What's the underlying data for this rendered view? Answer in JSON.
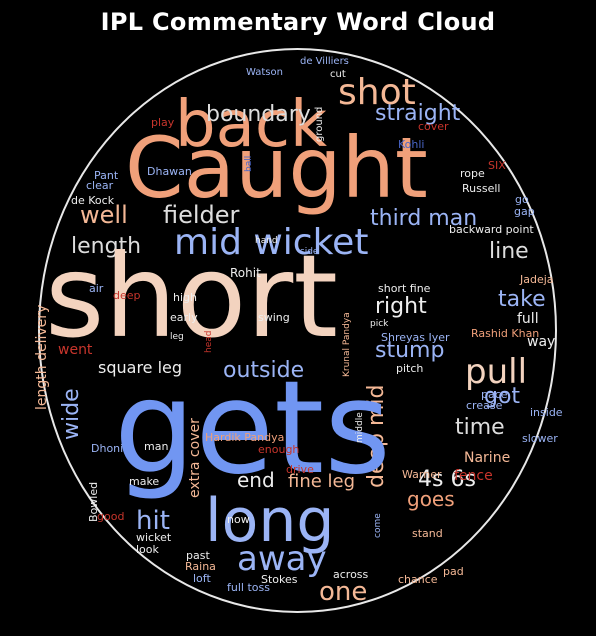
{
  "title": "IPL Commentary Word Cloud",
  "palette": {
    "peach": "#f4b896",
    "salmon": "#f0a07a",
    "cream": "#f3d3bf",
    "blue": "#7196f2",
    "lightblue": "#9bb4f5",
    "gray": "#dddddd",
    "white": "#eeeeee",
    "red": "#c8352c",
    "brown": "#c0503d",
    "navy": "#4a66c8"
  },
  "words": [
    {
      "text": "shot",
      "color": "peach"
    },
    {
      "text": "back",
      "color": "salmon"
    },
    {
      "text": "boundary",
      "color": "gray"
    },
    {
      "text": "Caught",
      "color": "salmon"
    },
    {
      "text": "de Villiers",
      "color": "lightblue"
    },
    {
      "text": "Watson",
      "color": "lightblue"
    },
    {
      "text": "cut",
      "color": "white"
    },
    {
      "text": "straight",
      "color": "lightblue"
    },
    {
      "text": "Kohli",
      "color": "navy"
    },
    {
      "text": "cover",
      "color": "red"
    },
    {
      "text": "play",
      "color": "red"
    },
    {
      "text": "ground",
      "color": "white"
    },
    {
      "text": "ball",
      "color": "navy"
    },
    {
      "text": "well",
      "color": "peach"
    },
    {
      "text": "fielder",
      "color": "gray"
    },
    {
      "text": "third man",
      "color": "lightblue"
    },
    {
      "text": "mid wicket",
      "color": "lightblue"
    },
    {
      "text": "length",
      "color": "gray"
    },
    {
      "text": "line",
      "color": "gray"
    },
    {
      "text": "short",
      "color": "cream"
    },
    {
      "text": "take",
      "color": "lightblue"
    },
    {
      "text": "right",
      "color": "white"
    },
    {
      "text": "outside",
      "color": "lightblue"
    },
    {
      "text": "stump",
      "color": "lightblue"
    },
    {
      "text": "pull",
      "color": "cream"
    },
    {
      "text": "deep mid",
      "color": "peach"
    },
    {
      "text": "got",
      "color": "lightblue"
    },
    {
      "text": "time",
      "color": "gray"
    },
    {
      "text": "gets",
      "color": "blue"
    },
    {
      "text": "long",
      "color": "lightblue"
    },
    {
      "text": "away",
      "color": "lightblue"
    },
    {
      "text": "one",
      "color": "peach"
    },
    {
      "text": "hit",
      "color": "lightblue"
    },
    {
      "text": "end",
      "color": "white"
    },
    {
      "text": "fine leg",
      "color": "peach"
    },
    {
      "text": "goes",
      "color": "salmon"
    },
    {
      "text": "4s 6s",
      "color": "white"
    },
    {
      "text": "wide",
      "color": "lightblue"
    },
    {
      "text": "square leg",
      "color": "white"
    },
    {
      "text": "length delivery",
      "color": "peach"
    },
    {
      "text": "went",
      "color": "red"
    },
    {
      "text": "extra cover",
      "color": "peach"
    },
    {
      "text": "Hardik Pandya",
      "color": "salmon"
    },
    {
      "text": "enough",
      "color": "red"
    },
    {
      "text": "drive",
      "color": "red"
    },
    {
      "text": "Narine",
      "color": "peach"
    },
    {
      "text": "fence",
      "color": "red"
    },
    {
      "text": "Warner",
      "color": "peach"
    },
    {
      "text": "SIX",
      "color": "red"
    },
    {
      "text": "rope",
      "color": "white"
    },
    {
      "text": "Russell",
      "color": "white"
    },
    {
      "text": "go",
      "color": "lightblue"
    },
    {
      "text": "gap",
      "color": "lightblue"
    },
    {
      "text": "backward point",
      "color": "white"
    },
    {
      "text": "Pant",
      "color": "lightblue"
    },
    {
      "text": "clear",
      "color": "lightblue"
    },
    {
      "text": "Dhawan",
      "color": "lightblue"
    },
    {
      "text": "de Kock",
      "color": "white"
    },
    {
      "text": "side",
      "color": "lightblue"
    },
    {
      "text": "hand",
      "color": "white"
    },
    {
      "text": "Rohit",
      "color": "white"
    },
    {
      "text": "air",
      "color": "lightblue"
    },
    {
      "text": "deep",
      "color": "red"
    },
    {
      "text": "high",
      "color": "white"
    },
    {
      "text": "early",
      "color": "white"
    },
    {
      "text": "swing",
      "color": "white"
    },
    {
      "text": "leg",
      "color": "white"
    },
    {
      "text": "head",
      "color": "red"
    },
    {
      "text": "Krunal Pandya",
      "color": "peach"
    },
    {
      "text": "short fine",
      "color": "white"
    },
    {
      "text": "pick",
      "color": "white"
    },
    {
      "text": "Jadeja",
      "color": "peach"
    },
    {
      "text": "full",
      "color": "white"
    },
    {
      "text": "Shreyas Iyer",
      "color": "lightblue"
    },
    {
      "text": "Rashid Khan",
      "color": "salmon"
    },
    {
      "text": "way",
      "color": "white"
    },
    {
      "text": "pitch",
      "color": "white"
    },
    {
      "text": "pace",
      "color": "lightblue"
    },
    {
      "text": "crease",
      "color": "lightblue"
    },
    {
      "text": "inside",
      "color": "lightblue"
    },
    {
      "text": "slower",
      "color": "lightblue"
    },
    {
      "text": "middle",
      "color": "white"
    },
    {
      "text": "man",
      "color": "white"
    },
    {
      "text": "Dhoni",
      "color": "lightblue"
    },
    {
      "text": "make",
      "color": "white"
    },
    {
      "text": "Bowled",
      "color": "white"
    },
    {
      "text": "good",
      "color": "red"
    },
    {
      "text": "wicket",
      "color": "white"
    },
    {
      "text": "look",
      "color": "white"
    },
    {
      "text": "now",
      "color": "white"
    },
    {
      "text": "past",
      "color": "white"
    },
    {
      "text": "Raina",
      "color": "peach"
    },
    {
      "text": "loft",
      "color": "lightblue"
    },
    {
      "text": "full toss",
      "color": "lightblue"
    },
    {
      "text": "Stokes",
      "color": "white"
    },
    {
      "text": "across",
      "color": "white"
    },
    {
      "text": "chance",
      "color": "peach"
    },
    {
      "text": "come",
      "color": "lightblue"
    },
    {
      "text": "stand",
      "color": "peach"
    },
    {
      "text": "pad",
      "color": "peach"
    }
  ]
}
